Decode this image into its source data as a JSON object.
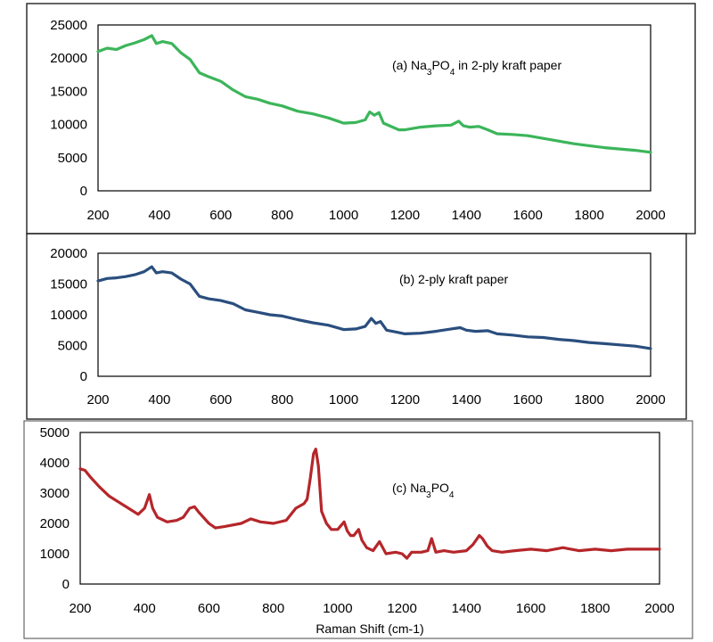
{
  "chart_data": [
    {
      "type": "line",
      "annotation_parts": [
        "(a) Na",
        "3",
        "PO",
        "4",
        " in 2-ply kraft paper"
      ],
      "xlabel": "",
      "ylabel": "",
      "xlim": [
        200,
        2000
      ],
      "ylim": [
        0,
        25000
      ],
      "xticks": [
        200,
        400,
        600,
        800,
        1000,
        1200,
        1400,
        1600,
        1800,
        2000
      ],
      "yticks": [
        0,
        5000,
        10000,
        15000,
        20000,
        25000
      ],
      "color": "#3cb55a",
      "grid": false,
      "legend": "none",
      "series": [
        {
          "x": [
            200,
            230,
            260,
            290,
            320,
            350,
            375,
            390,
            410,
            440,
            470,
            500,
            530,
            560,
            600,
            640,
            680,
            720,
            760,
            800,
            850,
            900,
            950,
            1000,
            1040,
            1070,
            1085,
            1100,
            1115,
            1130,
            1150,
            1180,
            1200,
            1250,
            1300,
            1350,
            1375,
            1390,
            1410,
            1440,
            1470,
            1500,
            1550,
            1600,
            1650,
            1700,
            1750,
            1800,
            1850,
            1900,
            1950,
            2000
          ],
          "y": [
            21000,
            21500,
            21300,
            21900,
            22300,
            22800,
            23400,
            22200,
            22500,
            22200,
            20800,
            19800,
            17800,
            17200,
            16500,
            15200,
            14200,
            13800,
            13200,
            12800,
            12000,
            11600,
            11000,
            10200,
            10300,
            10700,
            11900,
            11400,
            11800,
            10200,
            9800,
            9200,
            9200,
            9600,
            9800,
            9900,
            10500,
            9800,
            9600,
            9700,
            9200,
            8600,
            8500,
            8300,
            7900,
            7500,
            7100,
            6800,
            6500,
            6300,
            6100,
            5800
          ]
        }
      ]
    },
    {
      "type": "line",
      "annotation_parts": [
        "(b) 2-ply kraft paper"
      ],
      "xlabel": "",
      "ylabel": "",
      "xlim": [
        200,
        2000
      ],
      "ylim": [
        0,
        20000
      ],
      "xticks": [
        200,
        400,
        600,
        800,
        1000,
        1200,
        1400,
        1600,
        1800,
        2000
      ],
      "yticks": [
        0,
        5000,
        10000,
        15000,
        20000
      ],
      "color": "#2a4e7e",
      "grid": false,
      "legend": "none",
      "series": [
        {
          "x": [
            200,
            230,
            260,
            290,
            320,
            350,
            375,
            390,
            410,
            440,
            470,
            500,
            530,
            560,
            600,
            640,
            680,
            720,
            760,
            800,
            850,
            900,
            950,
            1000,
            1040,
            1070,
            1090,
            1105,
            1120,
            1140,
            1170,
            1200,
            1250,
            1300,
            1350,
            1380,
            1400,
            1430,
            1470,
            1500,
            1550,
            1600,
            1650,
            1700,
            1750,
            1800,
            1850,
            1900,
            1950,
            2000
          ],
          "y": [
            15500,
            15900,
            16000,
            16200,
            16500,
            17000,
            17800,
            16800,
            17000,
            16800,
            15800,
            15000,
            13000,
            12600,
            12300,
            11800,
            10800,
            10400,
            10000,
            9800,
            9200,
            8700,
            8300,
            7600,
            7700,
            8100,
            9400,
            8600,
            8900,
            7500,
            7200,
            6900,
            7000,
            7300,
            7700,
            7900,
            7500,
            7300,
            7400,
            6900,
            6700,
            6400,
            6300,
            6000,
            5800,
            5500,
            5300,
            5100,
            4900,
            4500
          ]
        }
      ]
    },
    {
      "type": "line",
      "annotation_parts": [
        "(c) Na",
        "3",
        "PO",
        "4"
      ],
      "xlabel": "Raman Shift (cm-1)",
      "ylabel": "",
      "xlim": [
        200,
        2000
      ],
      "ylim": [
        0,
        5000
      ],
      "xticks": [
        200,
        400,
        600,
        800,
        1000,
        1200,
        1400,
        1600,
        1800,
        2000
      ],
      "yticks": [
        0,
        1000,
        2000,
        3000,
        4000,
        5000
      ],
      "color": "#b5262a",
      "grid": false,
      "legend": "none",
      "series": [
        {
          "x": [
            200,
            215,
            230,
            260,
            290,
            320,
            350,
            380,
            400,
            415,
            425,
            440,
            470,
            500,
            520,
            540,
            555,
            570,
            600,
            620,
            650,
            700,
            730,
            760,
            800,
            840,
            870,
            895,
            905,
            915,
            925,
            932,
            940,
            950,
            965,
            980,
            1000,
            1020,
            1030,
            1040,
            1050,
            1065,
            1075,
            1090,
            1110,
            1130,
            1150,
            1180,
            1200,
            1215,
            1230,
            1260,
            1280,
            1292,
            1305,
            1330,
            1360,
            1400,
            1420,
            1440,
            1450,
            1465,
            1480,
            1510,
            1550,
            1600,
            1650,
            1700,
            1750,
            1800,
            1850,
            1900,
            1950,
            2000
          ],
          "y": [
            3800,
            3750,
            3550,
            3200,
            2900,
            2700,
            2500,
            2300,
            2500,
            2950,
            2500,
            2200,
            2050,
            2100,
            2200,
            2500,
            2550,
            2350,
            2000,
            1850,
            1900,
            2000,
            2150,
            2050,
            2000,
            2100,
            2500,
            2650,
            2800,
            3500,
            4300,
            4450,
            3900,
            2400,
            2000,
            1800,
            1800,
            2050,
            1750,
            1600,
            1600,
            1800,
            1450,
            1200,
            1100,
            1400,
            1000,
            1050,
            1000,
            850,
            1050,
            1050,
            1100,
            1500,
            1050,
            1100,
            1050,
            1100,
            1300,
            1600,
            1500,
            1250,
            1100,
            1050,
            1100,
            1150,
            1100,
            1200,
            1100,
            1150,
            1100,
            1150,
            1150,
            1150
          ]
        }
      ]
    }
  ]
}
